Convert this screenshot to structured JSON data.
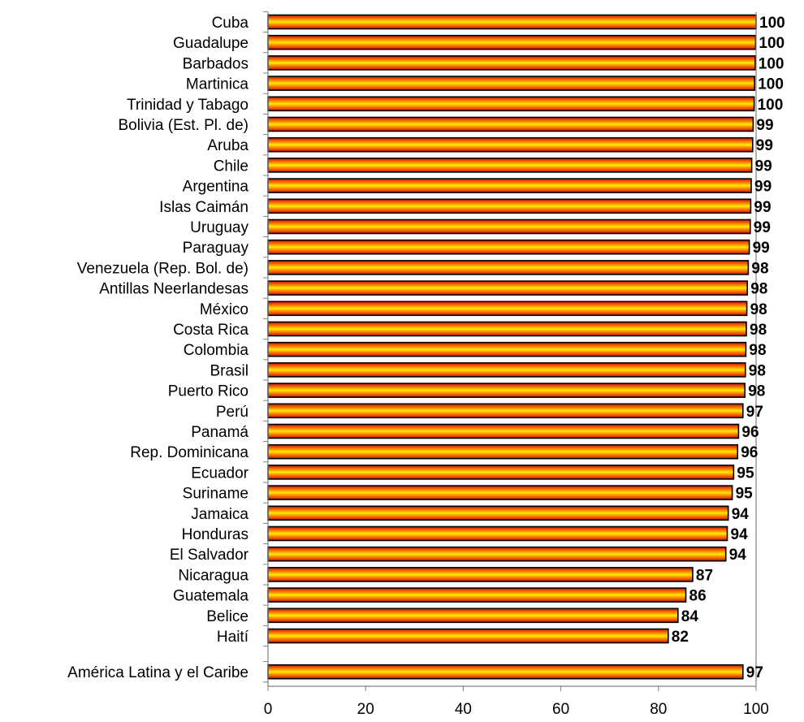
{
  "chart_data": {
    "type": "bar",
    "orientation": "horizontal",
    "categories": [
      "Cuba",
      "Guadalupe",
      "Barbados",
      "Martinica",
      "Trinidad y Tabago",
      "Bolivia (Est. Pl. de)",
      "Aruba",
      "Chile",
      "Argentina",
      "Islas Caimán",
      "Uruguay",
      "Paraguay",
      "Venezuela (Rep. Bol. de)",
      "Antillas Neerlandesas",
      "México",
      "Costa Rica",
      "Colombia",
      "Brasil",
      "Puerto Rico",
      "Perú",
      "Panamá",
      "Rep. Dominicana",
      "Ecuador",
      "Suriname",
      "Jamaica",
      "Honduras",
      "El Salvador",
      "Nicaragua",
      "Guatemala",
      "Belice",
      "Haití",
      "América Latina y el Caribe"
    ],
    "values": [
      100,
      100,
      100,
      100,
      100,
      99,
      99,
      99,
      99,
      99,
      99,
      99,
      98,
      98,
      98,
      98,
      98,
      98,
      98,
      97,
      96,
      96,
      95,
      95,
      94,
      94,
      94,
      87,
      86,
      84,
      82,
      97
    ],
    "precise_values": [
      100,
      99.9,
      99.8,
      99.7,
      99.6,
      99.4,
      99.3,
      99.1,
      99.0,
      98.9,
      98.8,
      98.6,
      98.4,
      98.2,
      98.1,
      98.0,
      97.9,
      97.8,
      97.7,
      97.3,
      96.4,
      96.2,
      95.4,
      95.1,
      94.3,
      94.1,
      93.8,
      87.0,
      85.6,
      84.0,
      82.0,
      97.3
    ],
    "value_labels": [
      "100",
      "100",
      "100",
      "100",
      "100",
      "99",
      "99",
      "99",
      "99",
      "99",
      "99",
      "99",
      "98",
      "98",
      "98",
      "98",
      "98",
      "98",
      "98",
      "97",
      "96",
      "96",
      "95",
      "95",
      "94",
      "94",
      "94",
      "87",
      "86",
      "84",
      "82",
      "97"
    ],
    "xlim": [
      0,
      100
    ],
    "xticks": [
      "0",
      "20",
      "40",
      "60",
      "80",
      "100"
    ],
    "title": "",
    "xlabel": "",
    "ylabel": "",
    "grid": false,
    "legend": "none",
    "colors": {
      "bar_edge": "#000000",
      "gradient_outer": "#cc1100",
      "gradient_mid": "#ff8800",
      "gradient_center": "#ffee00",
      "axis": "#808080"
    }
  }
}
